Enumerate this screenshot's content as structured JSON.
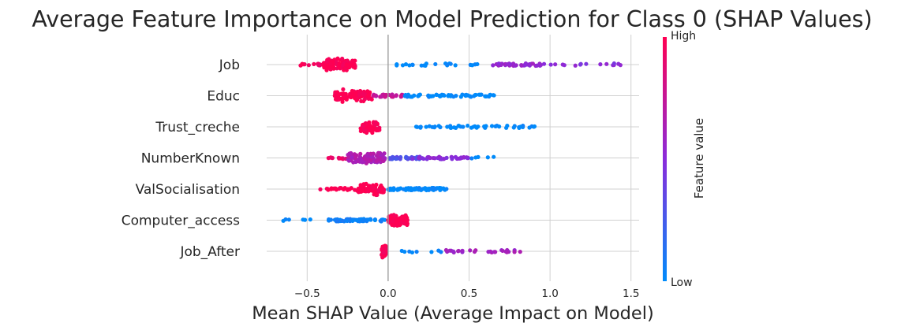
{
  "chart_data": {
    "type": "scatter",
    "subtype": "shap-beeswarm",
    "title": "Average Feature Importance on Model Prediction for Class 0 (SHAP Values)",
    "xlabel": "Mean SHAP Value (Average Impact on Model)",
    "xlim": [
      -0.75,
      1.55
    ],
    "xticks": [
      -0.5,
      0.0,
      0.5,
      1.0,
      1.5
    ],
    "xtick_labels": [
      "−0.5",
      "0.0",
      "0.5",
      "1.0",
      "1.5"
    ],
    "grid": true,
    "colorbar": {
      "label": "Feature value",
      "high_label": "High",
      "low_label": "Low",
      "high_color": "#ff0052",
      "mid_color": "#8a2bdb",
      "low_color": "#008bfb"
    },
    "features": [
      {
        "name": "Job",
        "groups": [
          {
            "range": [
              -0.57,
              -0.4
            ],
            "n": 16,
            "c": 0.95
          },
          {
            "range": [
              -0.4,
              -0.2
            ],
            "n": 110,
            "c": 1.0,
            "dense": true
          },
          {
            "range": [
              0.05,
              0.6
            ],
            "n": 22,
            "c": 0.0
          },
          {
            "range": [
              0.6,
              0.95
            ],
            "n": 40,
            "c": 0.55
          },
          {
            "range": [
              0.95,
              1.45
            ],
            "n": 16,
            "c": 0.5
          }
        ]
      },
      {
        "name": "Educ",
        "groups": [
          {
            "range": [
              -0.33,
              -0.1
            ],
            "n": 95,
            "c": 1.0,
            "dense": true
          },
          {
            "range": [
              -0.1,
              0.1
            ],
            "n": 25,
            "c": 0.75
          },
          {
            "range": [
              0.1,
              0.66
            ],
            "n": 60,
            "c": 0.0
          }
        ]
      },
      {
        "name": "Trust_creche",
        "groups": [
          {
            "range": [
              -0.17,
              -0.05
            ],
            "n": 70,
            "c": 1.0,
            "dense": true
          },
          {
            "range": [
              0.17,
              0.94
            ],
            "n": 50,
            "c": 0.0
          }
        ]
      },
      {
        "name": "NumberKnown",
        "groups": [
          {
            "range": [
              -0.38,
              -0.25
            ],
            "n": 12,
            "c": 0.9
          },
          {
            "range": [
              -0.25,
              -0.02
            ],
            "n": 110,
            "c": 0.65,
            "dense": true
          },
          {
            "range": [
              0.0,
              0.2
            ],
            "n": 35,
            "c": 0.3
          },
          {
            "range": [
              0.15,
              0.5
            ],
            "n": 40,
            "c": 0.5
          },
          {
            "range": [
              0.5,
              0.68
            ],
            "n": 5,
            "c": 0.0
          }
        ]
      },
      {
        "name": "ValSocialisation",
        "groups": [
          {
            "range": [
              -0.47,
              -0.2
            ],
            "n": 22,
            "c": 1.0
          },
          {
            "range": [
              -0.2,
              -0.02
            ],
            "n": 65,
            "c": 1.0,
            "dense": true
          },
          {
            "range": [
              0.0,
              0.37
            ],
            "n": 80,
            "c": 0.0
          }
        ]
      },
      {
        "name": "Computer_access",
        "groups": [
          {
            "range": [
              -0.65,
              -0.48
            ],
            "n": 6,
            "c": 0.0
          },
          {
            "range": [
              -0.38,
              0.0
            ],
            "n": 60,
            "c": 0.05
          },
          {
            "range": [
              0.0,
              0.12
            ],
            "n": 85,
            "c": 1.0,
            "dense": true
          }
        ]
      },
      {
        "name": "Job_After",
        "groups": [
          {
            "range": [
              -0.04,
              -0.01
            ],
            "n": 70,
            "c": 1.0,
            "dense": true
          },
          {
            "range": [
              0.04,
              0.35
            ],
            "n": 8,
            "c": 0.0
          },
          {
            "range": [
              0.33,
              0.82
            ],
            "n": 28,
            "c": 0.6
          }
        ]
      }
    ]
  }
}
